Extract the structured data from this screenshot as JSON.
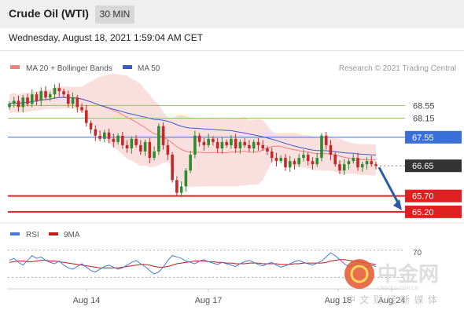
{
  "header": {
    "title": "Crude Oil (WTI)",
    "timeframe": "30 MIN"
  },
  "date_line": "Wednesday, August 18, 2021 1:59:04 AM CET",
  "colors": {
    "header_bg": "#efefef",
    "candle_up": "#2e8b2e",
    "candle_down": "#c62828",
    "bollinger": "#f5b8b8",
    "ma20": "#f08080",
    "ma50": "#3b5cc4",
    "support": "#e02020",
    "resistance_green": "#8cc06c",
    "pivot": "#3a6fd8",
    "current": "#333333",
    "rsi": "#4a78d6",
    "rsi_ma": "#c81818",
    "arrow": "#2a5aa8"
  },
  "chart_data": [
    {
      "type": "candlestick",
      "legend": [
        {
          "name": "MA 20 + Bollinger Bands",
          "color": "#f08080"
        },
        {
          "name": "MA 50",
          "color": "#3b5cc4"
        }
      ],
      "credit": "Research © 2021 Trading Central",
      "ylim": [
        64.9,
        69.4
      ],
      "x_tick_labels": [
        "Aug 14",
        "Aug 17",
        "Aug 18",
        "Aug 24"
      ],
      "levels": [
        {
          "value": 68.55,
          "label": "68.55",
          "kind": "resistance"
        },
        {
          "value": 68.15,
          "label": "68.15",
          "kind": "resistance"
        },
        {
          "value": 67.55,
          "label": "67.55",
          "kind": "pivot"
        },
        {
          "value": 66.65,
          "label": "66.65",
          "kind": "current"
        },
        {
          "value": 65.7,
          "label": "65.70",
          "kind": "support"
        },
        {
          "value": 65.2,
          "label": "65.20",
          "kind": "support"
        }
      ],
      "arrow": {
        "from": 66.65,
        "to": 65.2,
        "direction": "down"
      },
      "close_series": [
        68.6,
        68.7,
        68.5,
        68.8,
        68.6,
        68.9,
        68.7,
        69.0,
        68.8,
        68.9,
        69.1,
        69.0,
        68.9,
        68.6,
        68.8,
        68.5,
        68.4,
        68.0,
        67.8,
        67.6,
        67.5,
        67.7,
        67.5,
        67.4,
        67.6,
        67.3,
        67.2,
        67.5,
        67.3,
        67.1,
        67.4,
        66.9,
        67.1,
        67.9,
        67.3,
        67.0,
        66.2,
        65.8,
        66.0,
        66.5,
        67.0,
        67.6,
        67.4,
        67.3,
        67.5,
        67.4,
        67.2,
        67.4,
        67.3,
        67.5,
        67.2,
        67.4,
        67.3,
        67.2,
        67.4,
        67.3,
        67.2,
        67.1,
        66.9,
        66.8,
        66.9,
        66.6,
        66.8,
        66.7,
        66.9,
        67.0,
        66.8,
        66.7,
        66.9,
        67.6,
        67.3,
        67.0,
        66.7,
        66.5,
        66.7,
        66.8,
        66.9,
        66.6,
        66.7,
        66.8,
        66.7,
        66.65
      ]
    },
    {
      "type": "line",
      "legend": [
        {
          "name": "RSI",
          "color": "#4a78d6"
        },
        {
          "name": "9MA",
          "color": "#c81818"
        }
      ],
      "ylim": [
        20,
        80
      ],
      "y_tick_labels": [
        "70"
      ],
      "x_tick_labels": [
        "Aug 14",
        "Aug 17",
        "Aug 18",
        "Aug 24"
      ],
      "rsi": [
        55,
        58,
        52,
        48,
        55,
        62,
        58,
        60,
        55,
        52,
        50,
        54,
        48,
        44,
        42,
        46,
        50,
        45,
        40,
        38,
        42,
        46,
        48,
        45,
        42,
        44,
        48,
        52,
        55,
        50,
        46,
        40,
        35,
        38,
        45,
        55,
        62,
        60,
        58,
        54,
        52,
        50,
        54,
        56,
        53,
        51,
        49,
        52,
        50,
        48,
        46,
        50,
        53,
        55,
        52,
        49,
        47,
        50,
        52,
        48,
        45,
        47,
        50,
        53,
        55,
        52,
        50,
        48,
        51,
        54,
        60,
        66,
        62,
        56,
        50,
        46,
        48,
        50,
        47,
        45,
        48,
        46
      ],
      "ma9": [
        52,
        53,
        54,
        54,
        53,
        53,
        54,
        55,
        55,
        54,
        54,
        53,
        52,
        51,
        50,
        49,
        48,
        47,
        46,
        45,
        44,
        44,
        44,
        44,
        44,
        45,
        46,
        47,
        48,
        49,
        49,
        48,
        46,
        45,
        45,
        46,
        48,
        50,
        51,
        52,
        53,
        54,
        54,
        54,
        53,
        53,
        52,
        52,
        51,
        51,
        50,
        50,
        50,
        51,
        51,
        51,
        50,
        50,
        50,
        50,
        49,
        49,
        49,
        50,
        50,
        51,
        51,
        51,
        51,
        51,
        52,
        54,
        55,
        56,
        56,
        55,
        54,
        53,
        52,
        51,
        50,
        49
      ]
    }
  ],
  "watermark": {
    "brand": "中金网",
    "domain": "CNGOLD.COM.CN",
    "slogan": "中 文 财 经 新 媒 体"
  }
}
